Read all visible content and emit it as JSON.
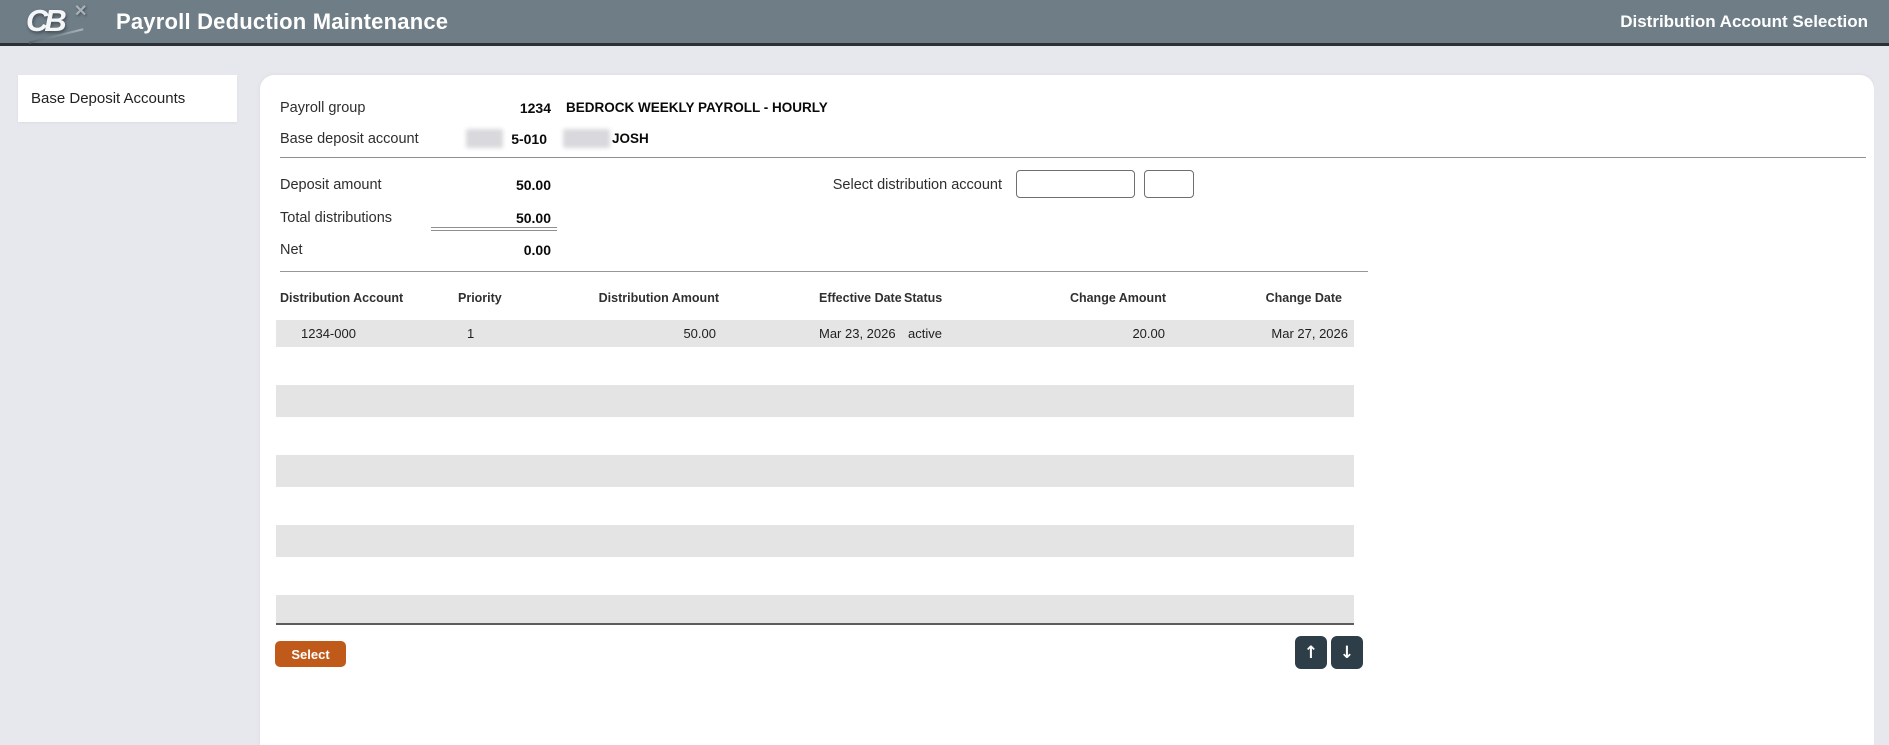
{
  "header": {
    "logo_text": "CB",
    "logo_mark": "✕",
    "title": "Payroll Deduction Maintenance",
    "subtitle": "Distribution Account Selection"
  },
  "sidebar": {
    "items": [
      {
        "label": "Base Deposit Accounts"
      }
    ]
  },
  "summary": {
    "payroll_group": {
      "label": "Payroll group",
      "code": "1234",
      "description": "BEDROCK WEEKLY PAYROLL - HOURLY"
    },
    "base_deposit_account": {
      "label": "Base deposit account",
      "account_visible": "5-010",
      "name_visible": "JOSH"
    },
    "deposit_amount": {
      "label": "Deposit amount",
      "value": "50.00"
    },
    "total_distributions": {
      "label": "Total distributions",
      "value": "50.00"
    },
    "net": {
      "label": "Net",
      "value": "0.00"
    }
  },
  "select_distribution": {
    "label": "Select distribution account",
    "account_value": "",
    "suffix_value": ""
  },
  "table": {
    "headers": [
      "Distribution Account",
      "Priority",
      "Distribution Amount",
      "Effective Date",
      "Status",
      "Change Amount",
      "Change Date"
    ],
    "rows": [
      {
        "distribution_account": "1234-000",
        "priority": "1",
        "distribution_amount": "50.00",
        "effective_date": "Mar 23, 2026",
        "status": "active",
        "change_amount": "20.00",
        "change_date": "Mar 27, 2026"
      }
    ],
    "empty_row_count": 4
  },
  "actions": {
    "select_label": "Select",
    "up_icon": "↑",
    "down_icon": "↓"
  },
  "colors": {
    "header_bg": "#6f7d87",
    "header_border": "#2b3136",
    "accent_orange": "#c05a1b",
    "button_dark": "#2e3e48",
    "sidebar_bg": "#e7e7ee",
    "row_gray": "#e5e5e5"
  }
}
